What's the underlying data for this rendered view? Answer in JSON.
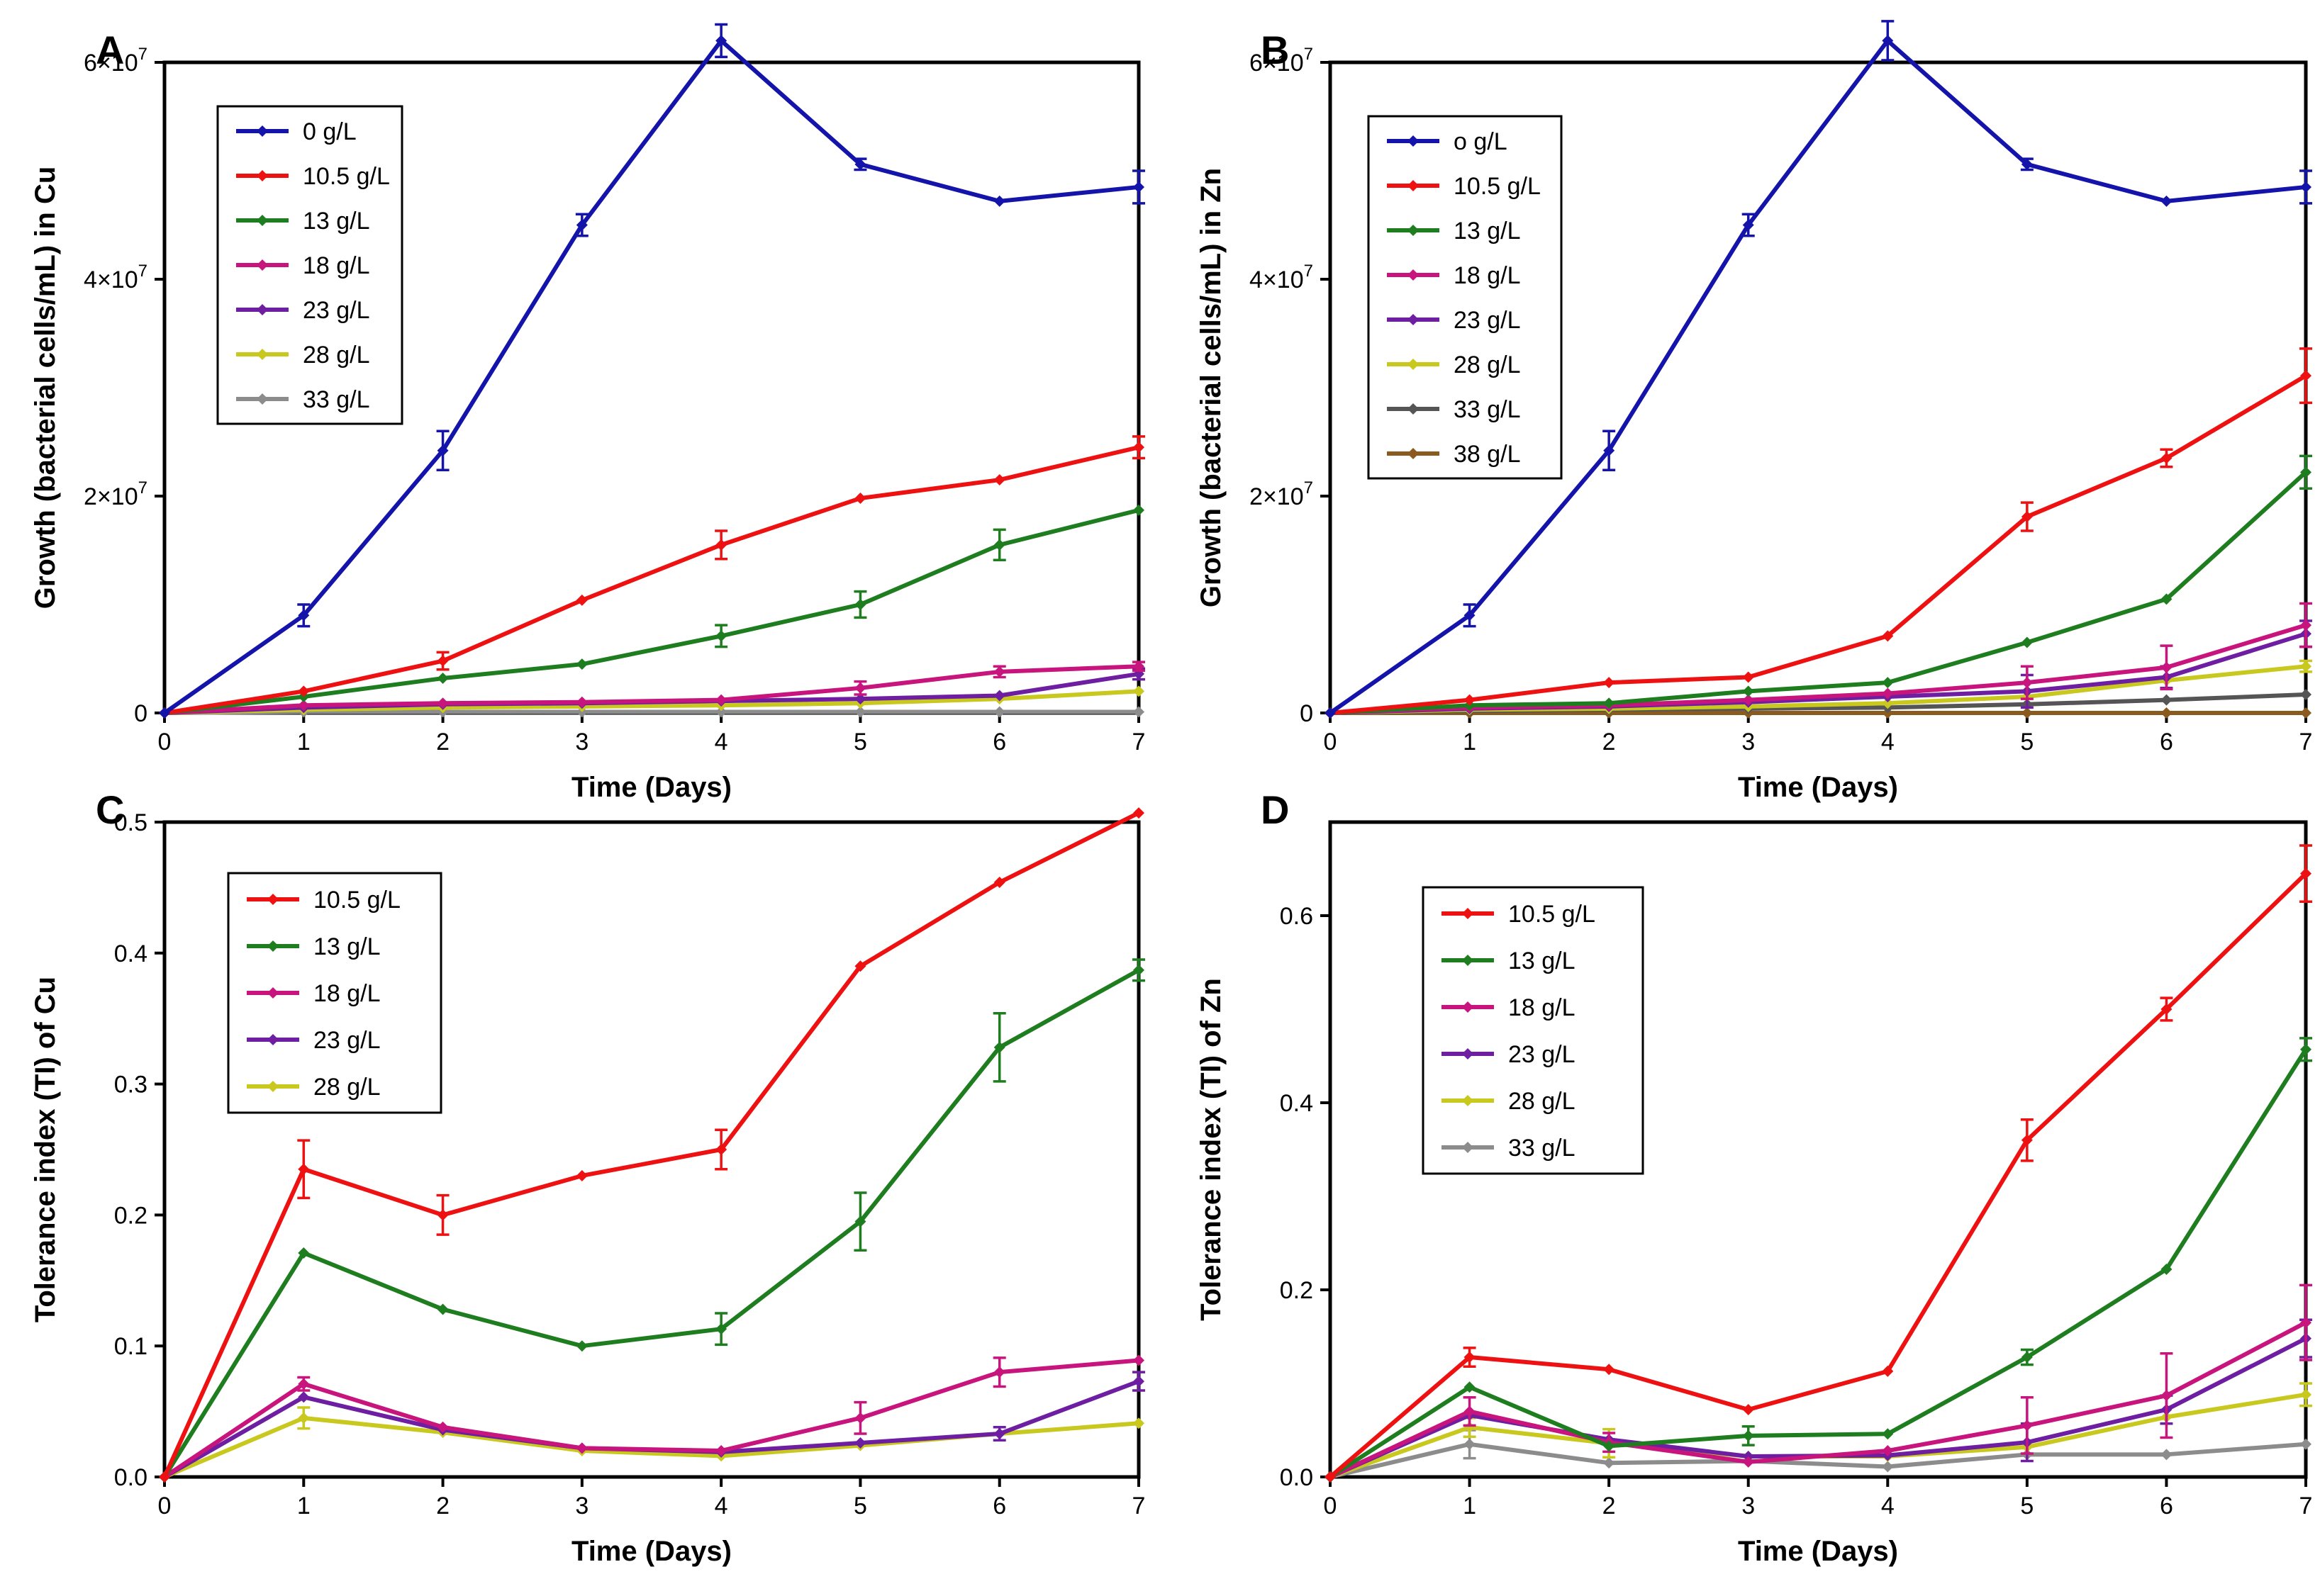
{
  "chart_data": [
    {
      "panel": "A",
      "type": "line",
      "xlabel": "Time (Days)",
      "ylabel": "Growth (bacterial cells/mL) in Cu",
      "x": [
        0,
        1,
        2,
        3,
        4,
        5,
        6,
        7
      ],
      "xlim": [
        0,
        7
      ],
      "ylim": [
        0,
        60000000
      ],
      "xticks": [
        "0",
        "1",
        "2",
        "3",
        "4",
        "5",
        "6",
        "7"
      ],
      "yticks": [
        {
          "value": 0,
          "base": "0",
          "exp": ""
        },
        {
          "value": 20000000,
          "base": "2×10",
          "exp": "7"
        },
        {
          "value": 40000000,
          "base": "4×10",
          "exp": "7"
        },
        {
          "value": 60000000,
          "base": "6×10",
          "exp": "7"
        }
      ],
      "series": [
        {
          "name": "0 g/L",
          "color": "#1414aa",
          "values": [
            0,
            9000000,
            24200000,
            45000000,
            62000000,
            50600000,
            47200000,
            48500000
          ],
          "errors": [
            0,
            1000000,
            1800000,
            1000000,
            1500000,
            500000,
            0,
            1500000
          ]
        },
        {
          "name": "10.5 g/L",
          "color": "#ee1111",
          "values": [
            0,
            2000000,
            4800000,
            10400000,
            15500000,
            19800000,
            21500000,
            24500000
          ],
          "errors": [
            0,
            0,
            800000,
            0,
            1300000,
            0,
            0,
            1000000
          ]
        },
        {
          "name": "13 g/L",
          "color": "#1e7d1e",
          "values": [
            0,
            1500000,
            3200000,
            4500000,
            7100000,
            10000000,
            15500000,
            18700000
          ],
          "errors": [
            0,
            0,
            0,
            0,
            1000000,
            1200000,
            1400000,
            0
          ]
        },
        {
          "name": "18 g/L",
          "color": "#c8147d",
          "values": [
            0,
            700000,
            900000,
            1000000,
            1200000,
            2300000,
            3800000,
            4300000
          ],
          "errors": [
            0,
            0,
            0,
            0,
            0,
            600000,
            500000,
            400000
          ]
        },
        {
          "name": "23 g/L",
          "color": "#6e1ea0",
          "values": [
            0,
            500000,
            800000,
            900000,
            1100000,
            1300000,
            1600000,
            3600000
          ],
          "errors": [
            0,
            0,
            0,
            0,
            0,
            0,
            0,
            500000
          ]
        },
        {
          "name": "28 g/L",
          "color": "#c8c81e",
          "values": [
            0,
            300000,
            500000,
            600000,
            700000,
            900000,
            1300000,
            2000000
          ],
          "errors": [
            0,
            0,
            0,
            0,
            0,
            0,
            0,
            0
          ]
        },
        {
          "name": "33 g/L",
          "color": "#8c8c8c",
          "values": [
            0,
            100000,
            100000,
            100000,
            100000,
            100000,
            100000,
            100000
          ],
          "errors": [
            0,
            0,
            0,
            0,
            0,
            0,
            0,
            0
          ]
        }
      ]
    },
    {
      "panel": "B",
      "type": "line",
      "xlabel": "Time (Days)",
      "ylabel": "Growth (bacterial cells/mL) in Zn",
      "x": [
        0,
        1,
        2,
        3,
        4,
        5,
        6,
        7
      ],
      "xlim": [
        0,
        7
      ],
      "ylim": [
        0,
        60000000
      ],
      "xticks": [
        "0",
        "1",
        "2",
        "3",
        "4",
        "5",
        "6",
        "7"
      ],
      "yticks": [
        {
          "value": 0,
          "base": "0",
          "exp": ""
        },
        {
          "value": 20000000,
          "base": "2×10",
          "exp": "7"
        },
        {
          "value": 40000000,
          "base": "4×10",
          "exp": "7"
        },
        {
          "value": 60000000,
          "base": "6×10",
          "exp": "7"
        }
      ],
      "series": [
        {
          "name": "o g/L",
          "color": "#1414aa",
          "values": [
            0,
            9000000,
            24200000,
            45000000,
            62000000,
            50600000,
            47200000,
            48500000
          ],
          "errors": [
            0,
            1000000,
            1800000,
            1000000,
            1800000,
            500000,
            0,
            1500000
          ]
        },
        {
          "name": "10.5 g/L",
          "color": "#ee1111",
          "values": [
            0,
            1200000,
            2800000,
            3300000,
            7100000,
            18100000,
            23500000,
            31100000
          ],
          "errors": [
            0,
            0,
            0,
            0,
            0,
            1300000,
            800000,
            2500000
          ]
        },
        {
          "name": "13 g/L",
          "color": "#1e7d1e",
          "values": [
            0,
            700000,
            900000,
            2000000,
            2800000,
            6500000,
            10500000,
            22200000
          ],
          "errors": [
            0,
            0,
            0,
            0,
            0,
            0,
            0,
            1500000
          ]
        },
        {
          "name": "18 g/L",
          "color": "#c8147d",
          "values": [
            0,
            500000,
            700000,
            1200000,
            1800000,
            2800000,
            4200000,
            8100000
          ],
          "errors": [
            0,
            0,
            0,
            0,
            0,
            1500000,
            2000000,
            2000000
          ]
        },
        {
          "name": "23 g/L",
          "color": "#6e1ea0",
          "values": [
            0,
            400000,
            600000,
            1000000,
            1500000,
            2000000,
            3300000,
            7300000
          ],
          "errors": [
            0,
            0,
            0,
            0,
            0,
            1500000,
            1000000,
            1200000
          ]
        },
        {
          "name": "28 g/L",
          "color": "#c8c81e",
          "values": [
            0,
            300000,
            400000,
            600000,
            900000,
            1500000,
            3000000,
            4300000
          ],
          "errors": [
            0,
            0,
            0,
            0,
            0,
            0,
            0,
            500000
          ]
        },
        {
          "name": "33 g/L",
          "color": "#555555",
          "values": [
            0,
            200000,
            300000,
            400000,
            500000,
            800000,
            1200000,
            1700000
          ],
          "errors": [
            0,
            0,
            0,
            0,
            0,
            0,
            0,
            0
          ]
        },
        {
          "name": "38 g/L",
          "color": "#8b5a1e",
          "values": [
            0,
            0,
            0,
            0,
            0,
            0,
            0,
            0
          ],
          "errors": [
            0,
            0,
            0,
            0,
            0,
            0,
            0,
            0
          ]
        }
      ]
    },
    {
      "panel": "C",
      "type": "line",
      "xlabel": "Time (Days)",
      "ylabel": "Tolerance index (TI) of Cu",
      "x": [
        0,
        1,
        2,
        3,
        4,
        5,
        6,
        7
      ],
      "xlim": [
        0,
        7
      ],
      "ylim": [
        0,
        0.5
      ],
      "xticks": [
        "0",
        "1",
        "2",
        "3",
        "4",
        "5",
        "6",
        "7"
      ],
      "yticks": [
        {
          "value": 0,
          "base": "0.0",
          "exp": ""
        },
        {
          "value": 0.1,
          "base": "0.1",
          "exp": ""
        },
        {
          "value": 0.2,
          "base": "0.2",
          "exp": ""
        },
        {
          "value": 0.3,
          "base": "0.3",
          "exp": ""
        },
        {
          "value": 0.4,
          "base": "0.4",
          "exp": ""
        },
        {
          "value": 0.5,
          "base": "0.5",
          "exp": ""
        }
      ],
      "series": [
        {
          "name": "10.5 g/L",
          "color": "#ee1111",
          "values": [
            0,
            0.235,
            0.2,
            0.23,
            0.25,
            0.39,
            0.454,
            0.507
          ],
          "errors": [
            0,
            0.022,
            0.015,
            0,
            0.015,
            0,
            0,
            0
          ]
        },
        {
          "name": "13 g/L",
          "color": "#1e7d1e",
          "values": [
            0,
            0.171,
            0.128,
            0.1,
            0.113,
            0.195,
            0.328,
            0.387
          ],
          "errors": [
            0,
            0,
            0,
            0,
            0.012,
            0.022,
            0.026,
            0.008
          ]
        },
        {
          "name": "18 g/L",
          "color": "#c8147d",
          "values": [
            0,
            0.071,
            0.038,
            0.022,
            0.02,
            0.045,
            0.08,
            0.089
          ],
          "errors": [
            0,
            0.005,
            0,
            0,
            0,
            0.012,
            0.011,
            0
          ]
        },
        {
          "name": "23 g/L",
          "color": "#6e1ea0",
          "values": [
            0,
            0.061,
            0.036,
            0.022,
            0.019,
            0.026,
            0.033,
            0.073
          ],
          "errors": [
            0,
            0,
            0,
            0,
            0,
            0,
            0.005,
            0.007
          ]
        },
        {
          "name": "28 g/L",
          "color": "#c8c81e",
          "values": [
            0,
            0.045,
            0.034,
            0.02,
            0.016,
            0.024,
            0.033,
            0.041
          ],
          "errors": [
            0,
            0.008,
            0,
            0,
            0,
            0,
            0,
            0
          ]
        }
      ]
    },
    {
      "panel": "D",
      "type": "line",
      "xlabel": "Time (Days)",
      "ylabel": "Tolerance index (TI) of Zn",
      "x": [
        0,
        1,
        2,
        3,
        4,
        5,
        6,
        7
      ],
      "xlim": [
        0,
        7
      ],
      "ylim": [
        0,
        0.7
      ],
      "xticks": [
        "0",
        "1",
        "2",
        "3",
        "4",
        "5",
        "6",
        "7"
      ],
      "yticks": [
        {
          "value": 0,
          "base": "0.0",
          "exp": ""
        },
        {
          "value": 0.2,
          "base": "0.2",
          "exp": ""
        },
        {
          "value": 0.4,
          "base": "0.4",
          "exp": ""
        },
        {
          "value": 0.6,
          "base": "0.6",
          "exp": ""
        }
      ],
      "series": [
        {
          "name": "10.5 g/L",
          "color": "#ee1111",
          "values": [
            0,
            0.128,
            0.115,
            0.072,
            0.113,
            0.36,
            0.5,
            0.645
          ],
          "errors": [
            0,
            0.01,
            0,
            0,
            0,
            0.022,
            0.012,
            0.03
          ]
        },
        {
          "name": "13 g/L",
          "color": "#1e7d1e",
          "values": [
            0,
            0.096,
            0.033,
            0.044,
            0.046,
            0.128,
            0.222,
            0.457
          ],
          "errors": [
            0,
            0,
            0,
            0.01,
            0,
            0.008,
            0,
            0.012
          ]
        },
        {
          "name": "18 g/L",
          "color": "#c8147d",
          "values": [
            0,
            0.07,
            0.037,
            0.016,
            0.028,
            0.055,
            0.087,
            0.165
          ],
          "errors": [
            0,
            0.015,
            0.01,
            0,
            0,
            0.03,
            0.045,
            0.04
          ]
        },
        {
          "name": "23 g/L",
          "color": "#6e1ea0",
          "values": [
            0,
            0.066,
            0.04,
            0.022,
            0.023,
            0.037,
            0.072,
            0.148
          ],
          "errors": [
            0,
            0,
            0,
            0,
            0,
            0.02,
            0.015,
            0.02
          ]
        },
        {
          "name": "28 g/L",
          "color": "#c8c81e",
          "values": [
            0,
            0.053,
            0.036,
            0.022,
            0.022,
            0.032,
            0.064,
            0.088
          ],
          "errors": [
            0,
            0.01,
            0.015,
            0,
            0,
            0,
            0,
            0.012
          ]
        },
        {
          "name": "33 g/L",
          "color": "#8c8c8c",
          "values": [
            0,
            0.035,
            0.015,
            0.017,
            0.011,
            0.024,
            0.024,
            0.035
          ],
          "errors": [
            0,
            0.015,
            0,
            0,
            0,
            0,
            0,
            0
          ]
        }
      ]
    }
  ]
}
